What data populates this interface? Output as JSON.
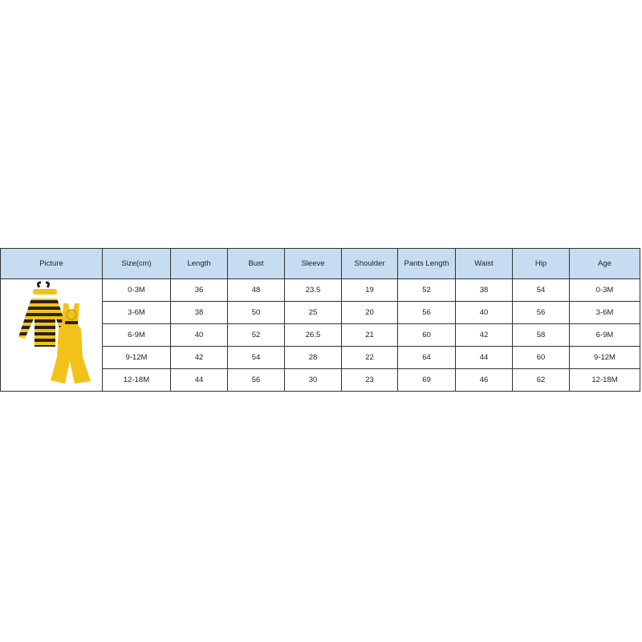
{
  "table": {
    "headers": [
      "Picture",
      "Size(cm)",
      "Length",
      "Bust",
      "Sleeve",
      "Shoulder",
      "Pants Length",
      "Waist",
      "Hip",
      "Age"
    ],
    "rows": [
      [
        "0-3M",
        "36",
        "48",
        "23.5",
        "19",
        "52",
        "38",
        "54",
        "0-3M"
      ],
      [
        "3-6M",
        "38",
        "50",
        "25",
        "20",
        "56",
        "40",
        "56",
        "3-6M"
      ],
      [
        "6-9M",
        "40",
        "52",
        "26.5",
        "21",
        "60",
        "42",
        "58",
        "6-9M"
      ],
      [
        "9-12M",
        "42",
        "54",
        "28",
        "22",
        "64",
        "44",
        "60",
        "9-12M"
      ],
      [
        "12-18M",
        "44",
        "56",
        "30",
        "23",
        "69",
        "46",
        "62",
        "12-18M"
      ]
    ],
    "picture_icon": "bee-outfit-product-image",
    "colors": {
      "header_bg": "#c6dcf0",
      "border": "#333333",
      "yellow": "#f2c21b",
      "stripe": "#2a2418"
    }
  }
}
